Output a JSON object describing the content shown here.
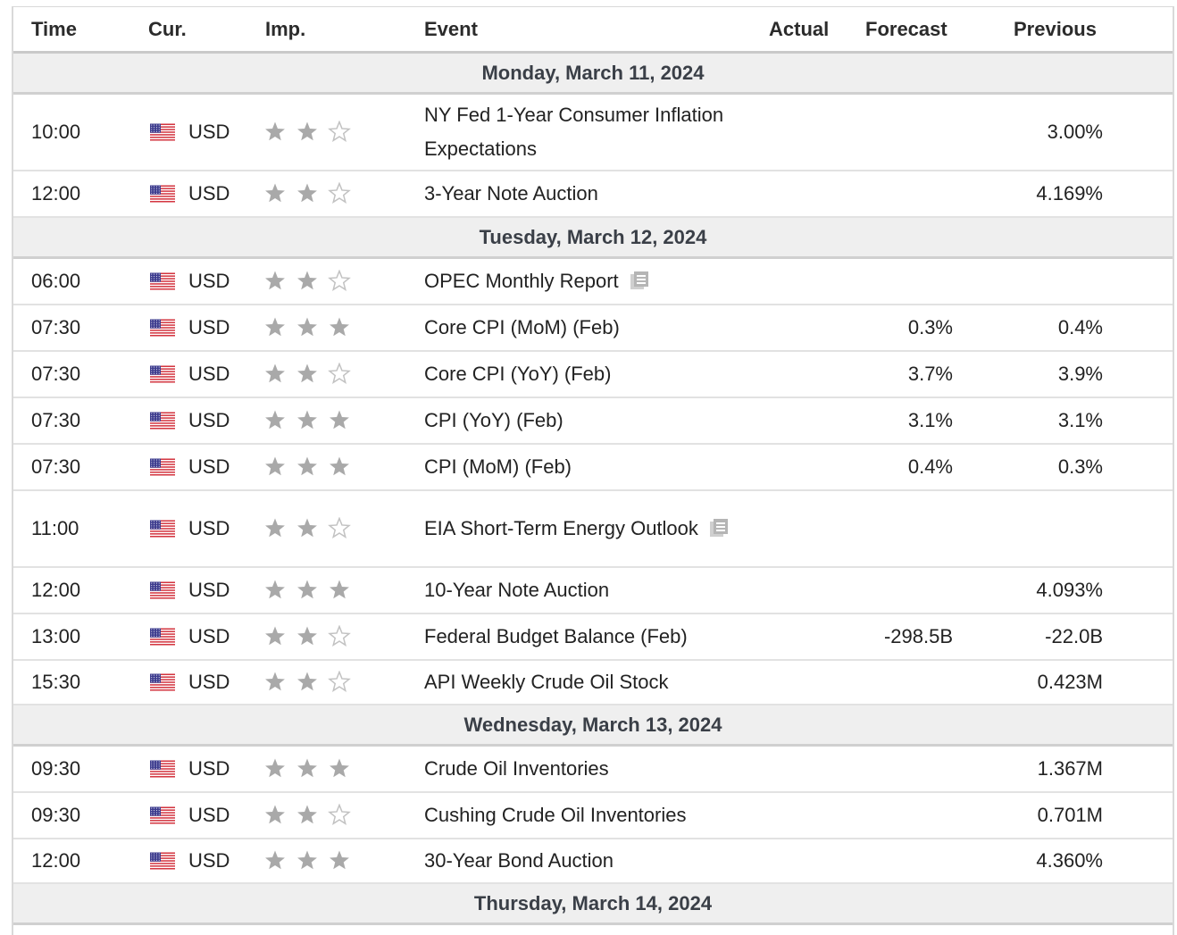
{
  "headers": {
    "time": "Time",
    "currency": "Cur.",
    "importance": "Imp.",
    "event": "Event",
    "actual": "Actual",
    "forecast": "Forecast",
    "previous": "Previous"
  },
  "colors": {
    "star_filled": "#a9a9a9",
    "star_empty_stroke": "#c2c2c2",
    "date_row_bg": "#efefef"
  },
  "sections": [
    {
      "date": "Monday, March 11, 2024",
      "events": [
        {
          "time": "10:00",
          "currency": "USD",
          "importance": 2,
          "event": "NY Fed 1-Year Consumer Inflation Expectations",
          "actual": "",
          "forecast": "",
          "previous": "3.00%"
        },
        {
          "time": "12:00",
          "currency": "USD",
          "importance": 2,
          "event": "3-Year Note Auction",
          "actual": "",
          "forecast": "",
          "previous": "4.169%"
        }
      ]
    },
    {
      "date": "Tuesday, March 12, 2024",
      "events": [
        {
          "time": "06:00",
          "currency": "USD",
          "importance": 2,
          "event": "OPEC Monthly Report",
          "has_report_icon": true,
          "actual": "",
          "forecast": "",
          "previous": ""
        },
        {
          "time": "07:30",
          "currency": "USD",
          "importance": 3,
          "event": "Core CPI (MoM) (Feb)",
          "actual": "",
          "forecast": "0.3%",
          "previous": "0.4%"
        },
        {
          "time": "07:30",
          "currency": "USD",
          "importance": 2,
          "event": "Core CPI (YoY) (Feb)",
          "actual": "",
          "forecast": "3.7%",
          "previous": "3.9%"
        },
        {
          "time": "07:30",
          "currency": "USD",
          "importance": 3,
          "event": "CPI (YoY) (Feb)",
          "actual": "",
          "forecast": "3.1%",
          "previous": "3.1%"
        },
        {
          "time": "07:30",
          "currency": "USD",
          "importance": 3,
          "event": "CPI (MoM) (Feb)",
          "actual": "",
          "forecast": "0.4%",
          "previous": "0.3%"
        },
        {
          "time": "11:00",
          "currency": "USD",
          "importance": 2,
          "event": "EIA Short-Term Energy Outlook",
          "has_report_icon": true,
          "actual": "",
          "forecast": "",
          "previous": ""
        },
        {
          "time": "12:00",
          "currency": "USD",
          "importance": 3,
          "event": "10-Year Note Auction",
          "actual": "",
          "forecast": "",
          "previous": "4.093%"
        },
        {
          "time": "13:00",
          "currency": "USD",
          "importance": 2,
          "event": "Federal Budget Balance (Feb)",
          "actual": "",
          "forecast": "-298.5B",
          "previous": "-22.0B"
        },
        {
          "time": "15:30",
          "currency": "USD",
          "importance": 2,
          "event": "API Weekly Crude Oil Stock",
          "actual": "",
          "forecast": "",
          "previous": "0.423M"
        }
      ]
    },
    {
      "date": "Wednesday, March 13, 2024",
      "events": [
        {
          "time": "09:30",
          "currency": "USD",
          "importance": 3,
          "event": "Crude Oil Inventories",
          "actual": "",
          "forecast": "",
          "previous": "1.367M"
        },
        {
          "time": "09:30",
          "currency": "USD",
          "importance": 2,
          "event": "Cushing Crude Oil Inventories",
          "actual": "",
          "forecast": "",
          "previous": "0.701M"
        },
        {
          "time": "12:00",
          "currency": "USD",
          "importance": 3,
          "event": "30-Year Bond Auction",
          "actual": "",
          "forecast": "",
          "previous": "4.360%"
        }
      ]
    },
    {
      "date": "Thursday, March 14, 2024",
      "events": []
    }
  ]
}
